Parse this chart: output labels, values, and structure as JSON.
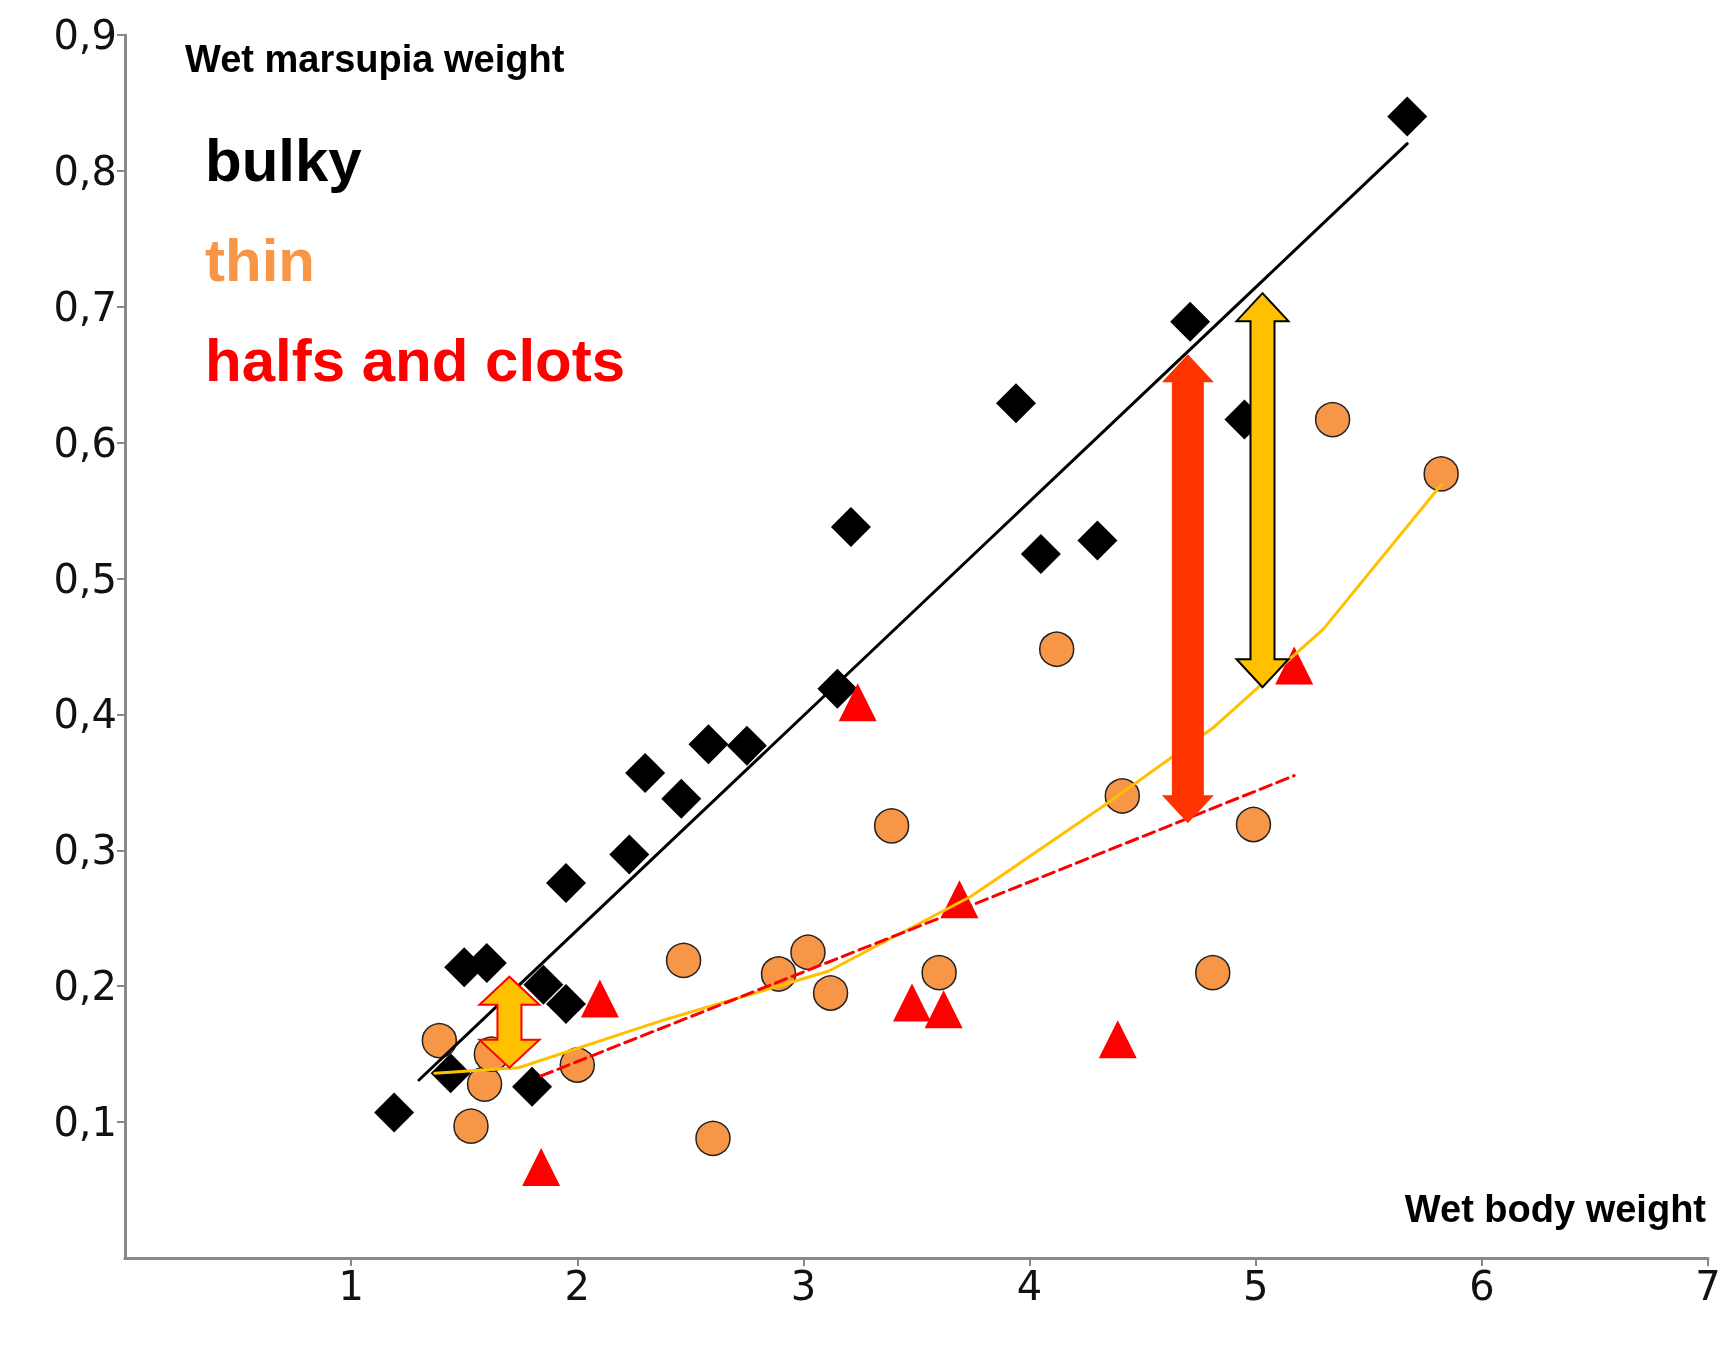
{
  "chart_data": {
    "type": "scatter",
    "xlabel": "Wet body weight",
    "ylabel": "Wet marsupia weight",
    "xlim": [
      0,
      7
    ],
    "xticks": [
      1,
      2,
      3,
      4,
      5,
      6,
      7
    ],
    "ylim": [
      0,
      0.9
    ],
    "yticks": [
      {
        "value": 0.1,
        "label": "0,1"
      },
      {
        "value": 0.2,
        "label": "0,2"
      },
      {
        "value": 0.3,
        "label": "0,3"
      },
      {
        "value": 0.4,
        "label": "0,4"
      },
      {
        "value": 0.5,
        "label": "0,5"
      },
      {
        "value": 0.6,
        "label": "0,6"
      },
      {
        "value": 0.7,
        "label": "0,7"
      },
      {
        "value": 0.8,
        "label": "0,8"
      },
      {
        "value": 0.9,
        "label": "0,9"
      }
    ],
    "grid": false,
    "legend": "top left",
    "series": [
      {
        "name": "bulky",
        "color": "#000000",
        "marker": "diamond",
        "x": [
          1.19,
          1.44,
          1.5,
          1.6,
          1.8,
          1.85,
          1.95,
          1.95,
          2.23,
          2.3,
          2.46,
          2.58,
          2.75,
          3.15,
          3.21,
          3.94,
          4.05,
          4.3,
          4.71,
          4.95,
          5.67
        ],
        "values": [
          0.107,
          0.136,
          0.214,
          0.217,
          0.126,
          0.201,
          0.187,
          0.276,
          0.297,
          0.357,
          0.338,
          0.378,
          0.377,
          0.419,
          0.538,
          0.629,
          0.518,
          0.528,
          0.689,
          0.617,
          0.84
        ]
      },
      {
        "name": "thin",
        "color": "#f79646",
        "marker": "circle",
        "x": [
          1.39,
          1.53,
          1.59,
          1.62,
          2.0,
          2.47,
          2.6,
          2.89,
          3.02,
          3.12,
          3.39,
          3.6,
          4.12,
          4.41,
          4.81,
          4.99,
          5.34,
          5.82
        ],
        "values": [
          0.16,
          0.097,
          0.128,
          0.15,
          0.142,
          0.219,
          0.088,
          0.209,
          0.225,
          0.195,
          0.318,
          0.21,
          0.448,
          0.34,
          0.21,
          0.319,
          0.617,
          0.577
        ]
      },
      {
        "name": "halfs and clots",
        "color": "#ff0000",
        "marker": "triangle",
        "x": [
          1.84,
          2.1,
          3.24,
          3.48,
          3.62,
          3.69,
          4.39,
          5.17
        ],
        "values": [
          0.067,
          0.191,
          0.409,
          0.188,
          0.183,
          0.264,
          0.161,
          0.436
        ]
      },
      {
        "type": "line",
        "color": "#000000",
        "marker": "none",
        "line_style": "solid",
        "x": [
          1.3,
          5.67
        ],
        "values": [
          0.131,
          0.82
        ]
      },
      {
        "type": "line",
        "color": "#ffc000",
        "marker": "none",
        "line_style": "solid",
        "x": [
          1.37,
          1.74,
          2.38,
          3.11,
          3.74,
          4.33,
          4.81,
          5.3,
          5.82
        ],
        "values": [
          0.136,
          0.14,
          0.175,
          0.211,
          0.266,
          0.333,
          0.39,
          0.463,
          0.569
        ]
      },
      {
        "type": "line",
        "color": "#ff0000",
        "marker": "none",
        "line_style": "dashed",
        "x": [
          1.84,
          3.6,
          5.17
        ],
        "values": [
          0.134,
          0.25,
          0.355
        ]
      }
    ]
  }
}
